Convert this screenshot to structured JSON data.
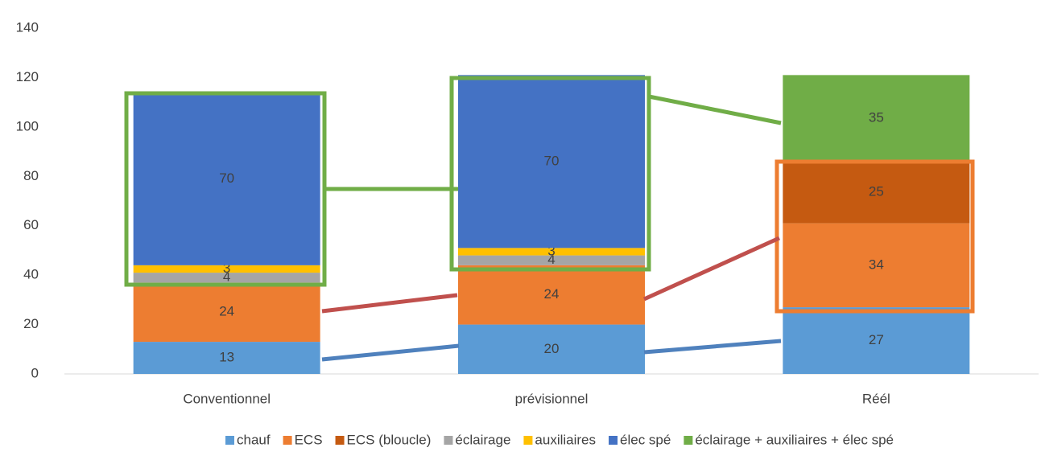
{
  "chart_data": {
    "type": "stacked-bar",
    "categories": [
      "Conventionnel",
      "prévisionnel",
      "Réél"
    ],
    "series": [
      {
        "name": "chauf",
        "color": "#5b9bd5",
        "values": [
          13,
          20,
          27
        ]
      },
      {
        "name": "ECS",
        "color": "#ed7d31",
        "values": [
          24,
          24,
          34
        ]
      },
      {
        "name": "ECS (bloucle)",
        "color": "#c55a11",
        "values": [
          null,
          null,
          25
        ]
      },
      {
        "name": "éclairage",
        "color": "#a5a5a5",
        "values": [
          4,
          4,
          null
        ]
      },
      {
        "name": "auxiliaires",
        "color": "#ffc000",
        "values": [
          3,
          3,
          null
        ]
      },
      {
        "name": "élec spé",
        "color": "#4472c4",
        "values": [
          70,
          70,
          null
        ]
      },
      {
        "name": "éclairage + auxiliaires + élec spé",
        "color": "#70ad47",
        "values": [
          null,
          null,
          35
        ]
      }
    ],
    "ylim": [
      0,
      140
    ],
    "yticks": [
      0,
      20,
      40,
      60,
      80,
      100,
      120,
      140
    ],
    "grid": false,
    "legend": "bottom"
  }
}
